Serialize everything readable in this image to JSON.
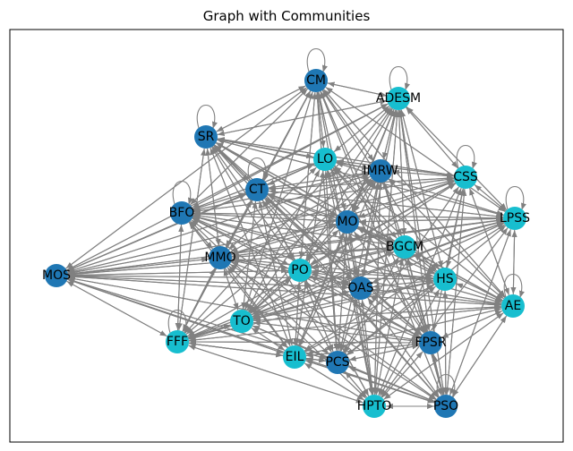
{
  "chart_data": {
    "type": "network-graph",
    "title": "Graph with Communities",
    "community_colors": {
      "a": "#1f77b4",
      "b": "#17becf"
    },
    "edge_color": "#808080",
    "nodes": [
      {
        "id": "CM",
        "community": "a",
        "self_loop": true
      },
      {
        "id": "ADESM",
        "community": "b",
        "self_loop": true
      },
      {
        "id": "SR",
        "community": "a",
        "self_loop": true
      },
      {
        "id": "LO",
        "community": "b",
        "self_loop": false
      },
      {
        "id": "IMRW",
        "community": "a",
        "self_loop": false
      },
      {
        "id": "CSS",
        "community": "b",
        "self_loop": true
      },
      {
        "id": "CT",
        "community": "a",
        "self_loop": true
      },
      {
        "id": "BFO",
        "community": "a",
        "self_loop": true
      },
      {
        "id": "MO",
        "community": "a",
        "self_loop": false
      },
      {
        "id": "LPSS",
        "community": "b",
        "self_loop": true
      },
      {
        "id": "BGCM",
        "community": "b",
        "self_loop": false
      },
      {
        "id": "MMO",
        "community": "a",
        "self_loop": false
      },
      {
        "id": "MOS",
        "community": "a",
        "self_loop": false
      },
      {
        "id": "PO",
        "community": "b",
        "self_loop": false
      },
      {
        "id": "HS",
        "community": "b",
        "self_loop": false
      },
      {
        "id": "OAS",
        "community": "a",
        "self_loop": false
      },
      {
        "id": "AE",
        "community": "b",
        "self_loop": true
      },
      {
        "id": "TO",
        "community": "b",
        "self_loop": false
      },
      {
        "id": "FFF",
        "community": "b",
        "self_loop": true
      },
      {
        "id": "FPSR",
        "community": "a",
        "self_loop": false
      },
      {
        "id": "EIL",
        "community": "b",
        "self_loop": false
      },
      {
        "id": "PCS",
        "community": "a",
        "self_loop": false
      },
      {
        "id": "HPTO",
        "community": "b",
        "self_loop": false
      },
      {
        "id": "PSO",
        "community": "a",
        "self_loop": true
      }
    ],
    "edges": "dense directed graph: edges from nearly every node to nearly every other node, drawn in grey with arrowheads"
  }
}
